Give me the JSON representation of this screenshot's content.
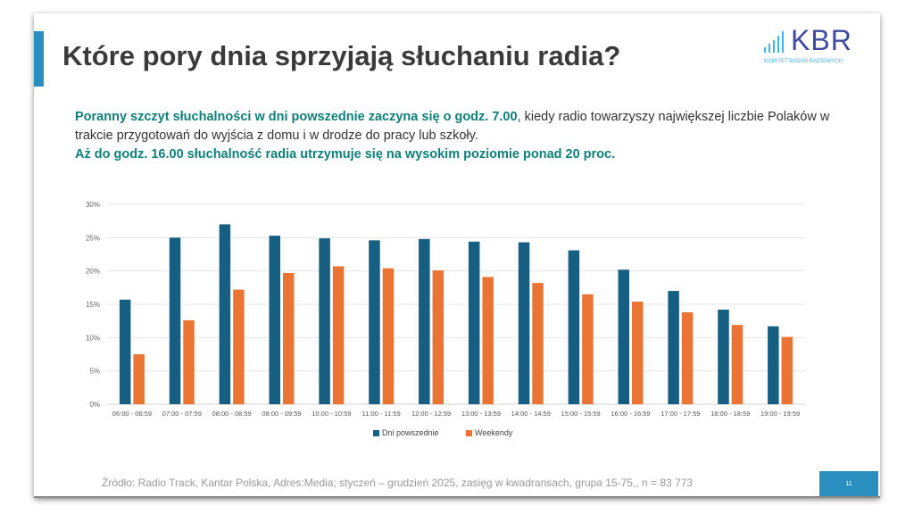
{
  "slide": {
    "title": "Które pory dnia sprzyjają słuchaniu radia?",
    "logo": {
      "text": "KBR",
      "subtitle": "KOMITET BADAŃ RADIOWYCH"
    },
    "intro": {
      "p1_highlight": "Poranny szczyt słuchalności w dni powszednie zaczyna się o godz. 7.00",
      "p1_rest": ", kiedy radio towarzyszy największej liczbie Polaków w trakcie przygotowań do wyjścia z domu i w drodze do pracy lub szkoły.",
      "p2_highlight": "Aż do godz. 16.00 słuchalność radia utrzymuje się na wysokim poziomie ponad 20 proc."
    },
    "source": "Źródło: Radio Track, Kantar Polska, Adres:Media; styczeń – grudzień 2025, zasięg w kwadransach, grupa 15-75,, n = 83 773",
    "page_number": "11"
  },
  "colors": {
    "accent": "#2a8fbf",
    "series1": "#165f82",
    "series2": "#ea7434"
  },
  "chart_data": {
    "type": "bar",
    "title": "",
    "xlabel": "",
    "ylabel": "",
    "ylim": [
      0,
      30
    ],
    "yticks": [
      "0%",
      "5%",
      "10%",
      "15%",
      "20%",
      "25%",
      "30%"
    ],
    "grid": true,
    "legend": "bottom",
    "categories": [
      "06:00 - 06:59",
      "07:00 - 07:59",
      "08:00 - 08:59",
      "09:00 - 09:59",
      "10:00 - 10:59",
      "11:00 - 11:59",
      "12:00 - 12:59",
      "13:00 - 13:59",
      "14:00 - 14:59",
      "15:00 - 15:59",
      "16:00 - 16:59",
      "17:00 - 17:59",
      "18:00 - 18:59",
      "19:00 - 19:59"
    ],
    "series": [
      {
        "name": "Dni powszednie",
        "values": [
          15.7,
          25.0,
          27.0,
          25.3,
          24.9,
          24.6,
          24.8,
          24.4,
          24.3,
          23.1,
          20.2,
          17.0,
          14.2,
          11.7
        ]
      },
      {
        "name": "Weekendy",
        "values": [
          7.5,
          12.6,
          17.2,
          19.7,
          20.7,
          20.4,
          20.1,
          19.1,
          18.2,
          16.5,
          15.4,
          13.8,
          11.9,
          10.1
        ]
      }
    ]
  }
}
